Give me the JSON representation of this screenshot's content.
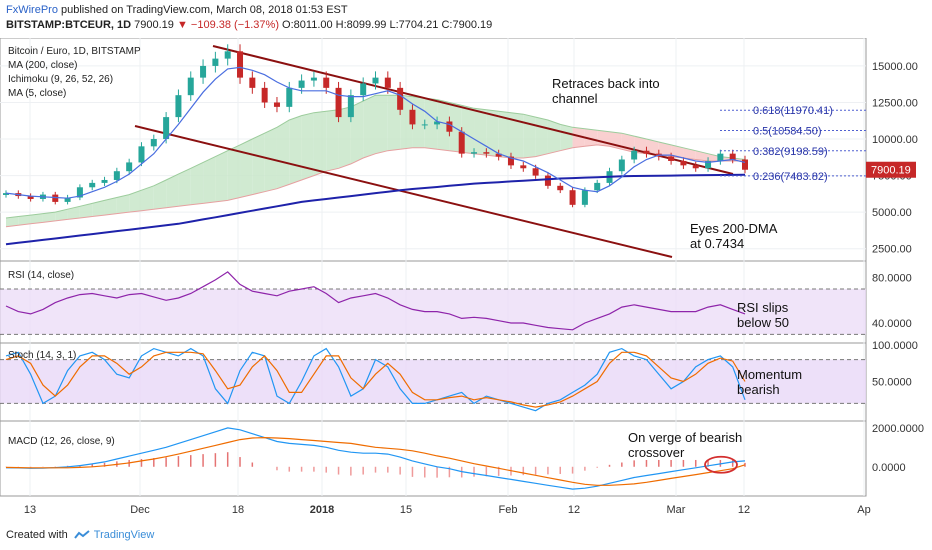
{
  "header": {
    "brand": "FxWirePro",
    "published": " published on TradingView.com, March 08, 2018 01:53 EST",
    "symbol": "BITSTAMP:BTCEUR, 1D",
    "last": "7900.19",
    "change": "▼ −109.38 (−1.37%)",
    "ohlc": "O:8011.00 H:8099.99 L:7704.21 C:7900.19"
  },
  "footer": {
    "created_with": "Created with",
    "tradingview": "TradingView"
  },
  "colors": {
    "up": "#26a69a",
    "down": "#c62828",
    "ma200": "#1e22aa",
    "ma5": "#4a6ee0",
    "cloud_bull": "#c8e6c9",
    "cloud_bear": "#f8c8c8",
    "channel": "#8b1010",
    "rsi": "#8e24aa",
    "stoch_k": "#2196f3",
    "stoch_d": "#ef6c00",
    "band": "#e9d8f7",
    "macd": "#2196f3",
    "signal": "#ef6c00",
    "hist": "#e53935"
  },
  "chart_data": [
    {
      "type": "line",
      "title": "Bitcoin / Euro, 1D, BITSTAMP",
      "indicators": [
        "MA (200, close)",
        "Ichimoku (9, 26, 52, 26)",
        "MA (5, close)"
      ],
      "y_ticks": [
        "15000.00",
        "12500.00",
        "10000.00",
        "7500.00",
        "5000.00",
        "2500.00"
      ],
      "ylim": [
        2000,
        16500
      ],
      "x_ticks": [
        "13",
        "Dec",
        "18",
        "2018",
        "15",
        "Feb",
        "12",
        "Mar",
        "12",
        "Ap"
      ],
      "price": [
        6300,
        6100,
        5900,
        6200,
        5700,
        6000,
        6700,
        7000,
        7200,
        7800,
        8400,
        9500,
        10000,
        11500,
        13000,
        14200,
        15000,
        15500,
        16000,
        14200,
        13500,
        12500,
        12200,
        13500,
        14000,
        14200,
        13500,
        11500,
        13000,
        13800,
        14200,
        13500,
        12000,
        11000,
        11000,
        11200,
        10500,
        9000,
        9100,
        9000,
        8800,
        8200,
        8000,
        7500,
        6800,
        6500,
        5500,
        6500,
        7000,
        7800,
        8600,
        9200,
        9000,
        8800,
        8500,
        8200,
        8000,
        8500,
        9000,
        8600,
        7900
      ],
      "ma5": [
        6300,
        6200,
        6100,
        6050,
        6000,
        5950,
        6100,
        6400,
        6700,
        7100,
        7600,
        8300,
        9000,
        10000,
        11000,
        12100,
        13200,
        14100,
        14800,
        14900,
        14700,
        14400,
        13900,
        13500,
        13300,
        13300,
        13300,
        13000,
        12900,
        12900,
        13100,
        13300,
        13000,
        12400,
        11900,
        11200,
        11000,
        10500,
        10000,
        9500,
        9000,
        8700,
        8500,
        8100,
        7700,
        7200,
        6700,
        6500,
        6400,
        6800,
        7400,
        8100,
        8600,
        8900,
        8900,
        8700,
        8500,
        8400,
        8500,
        8600,
        8400
      ],
      "ma200": [
        2800,
        2900,
        3000,
        3100,
        3200,
        3300,
        3400,
        3500,
        3600,
        3700,
        3800,
        3900,
        4000,
        4100,
        4200,
        4350,
        4500,
        4650,
        4800,
        4950,
        5100,
        5250,
        5400,
        5550,
        5700,
        5800,
        5900,
        6000,
        6100,
        6200,
        6300,
        6400,
        6500,
        6580,
        6650,
        6720,
        6800,
        6880,
        6950,
        7000,
        7050,
        7100,
        7150,
        7200,
        7250,
        7300,
        7330,
        7360,
        7390,
        7420,
        7450,
        7470,
        7480,
        7490,
        7500,
        7510,
        7520,
        7530,
        7540,
        7550,
        7560
      ],
      "cloud_top": [
        4600,
        4700,
        4800,
        4900,
        5000,
        5200,
        5400,
        5600,
        5800,
        6000,
        6200,
        6500,
        6800,
        7200,
        7600,
        8000,
        8400,
        8800,
        9200,
        9600,
        10000,
        10400,
        10800,
        11300,
        11600,
        11800,
        11900,
        12000,
        12200,
        12600,
        13000,
        13000,
        13000,
        12900,
        12800,
        12700,
        12500,
        12300,
        12100,
        12000,
        11900,
        11800,
        11700,
        11500,
        11300,
        11000,
        10800,
        10700,
        10600,
        10500,
        10400,
        10200,
        10000,
        9800,
        9600,
        9400,
        9200,
        9000,
        8800,
        8700,
        8600
      ],
      "cloud_bot": [
        4000,
        4100,
        4200,
        4300,
        4400,
        4500,
        4600,
        4700,
        4800,
        4900,
        5000,
        5100,
        5200,
        5300,
        5400,
        5500,
        5600,
        5700,
        5800,
        6000,
        6200,
        6400,
        6600,
        6900,
        7200,
        7500,
        7800,
        8000,
        8300,
        8700,
        9000,
        9200,
        9300,
        9400,
        9400,
        9300,
        9200,
        9100,
        9000,
        8900,
        8800,
        8700,
        8700,
        8800,
        9000,
        9200,
        9400,
        9500,
        9600,
        9500,
        9300,
        9100,
        9000,
        8900,
        8800,
        8700,
        8600,
        8500,
        8500,
        8500,
        8500
      ],
      "fib_levels": [
        {
          "label": "0.618(11970.41)",
          "value": 11970.41
        },
        {
          "label": "0.5(10584.50)",
          "value": 10584.5
        },
        {
          "label": "0.382(9198.59)",
          "value": 9198.59
        },
        {
          "label": "0.236(7483.82)",
          "value": 7483.82
        }
      ],
      "last_price_label": "7900.19",
      "annotations": [
        "Retraces back into channel",
        "Eyes 200-DMA at 0.7434"
      ]
    },
    {
      "type": "line",
      "title": "RSI (14, close)",
      "y_ticks": [
        "80.0000",
        "40.0000"
      ],
      "ylim": [
        25,
        92
      ],
      "band": [
        30,
        70
      ],
      "values": [
        55,
        50,
        48,
        52,
        58,
        62,
        65,
        66,
        64,
        62,
        65,
        66,
        63,
        60,
        62,
        66,
        72,
        78,
        85,
        74,
        68,
        66,
        64,
        68,
        70,
        72,
        66,
        58,
        62,
        64,
        66,
        62,
        56,
        52,
        50,
        50,
        48,
        44,
        45,
        44,
        42,
        40,
        40,
        38,
        36,
        35,
        34,
        40,
        44,
        48,
        54,
        56,
        54,
        52,
        50,
        50,
        50,
        54,
        56,
        52,
        48
      ],
      "annotations": [
        "RSI slips below 50"
      ]
    },
    {
      "type": "line",
      "title": "Stoch (14, 3, 1)",
      "y_ticks": [
        "100.0000",
        "50.0000"
      ],
      "ylim": [
        0,
        100
      ],
      "band": [
        20,
        80
      ],
      "k": [
        85,
        90,
        60,
        20,
        30,
        65,
        85,
        90,
        80,
        60,
        55,
        85,
        95,
        90,
        85,
        95,
        85,
        40,
        20,
        65,
        90,
        85,
        30,
        20,
        50,
        85,
        95,
        70,
        30,
        40,
        80,
        70,
        40,
        20,
        20,
        25,
        30,
        35,
        20,
        30,
        25,
        20,
        15,
        10,
        20,
        25,
        35,
        45,
        60,
        90,
        95,
        85,
        80,
        60,
        40,
        50,
        70,
        80,
        85,
        70,
        25
      ],
      "d": [
        80,
        85,
        75,
        45,
        30,
        45,
        70,
        85,
        85,
        75,
        60,
        70,
        85,
        90,
        90,
        90,
        88,
        65,
        40,
        45,
        70,
        85,
        65,
        35,
        35,
        60,
        85,
        85,
        55,
        40,
        60,
        75,
        60,
        35,
        25,
        25,
        28,
        30,
        25,
        28,
        25,
        22,
        18,
        15,
        18,
        22,
        30,
        40,
        50,
        75,
        90,
        90,
        85,
        70,
        55,
        50,
        60,
        75,
        82,
        78,
        50
      ],
      "annotations": [
        "Momentum bearish"
      ]
    },
    {
      "type": "line",
      "title": "MACD (12, 26, close, 9)",
      "y_ticks": [
        "2000.0000",
        "0.0000"
      ],
      "ylim": [
        -1400,
        2200
      ],
      "macd": [
        -50,
        -60,
        -80,
        -70,
        -40,
        0,
        60,
        150,
        250,
        400,
        550,
        700,
        850,
        1000,
        1200,
        1400,
        1600,
        1800,
        2000,
        1900,
        1700,
        1500,
        1300,
        1200,
        1150,
        1100,
        1000,
        850,
        750,
        700,
        700,
        650,
        500,
        300,
        150,
        0,
        -100,
        -250,
        -350,
        -450,
        -550,
        -650,
        -750,
        -850,
        -950,
        -1050,
        -1150,
        -1100,
        -1000,
        -850,
        -700,
        -550,
        -450,
        -350,
        -250,
        -150,
        -50,
        50,
        150,
        250,
        300
      ],
      "signal": [
        -30,
        -40,
        -50,
        -55,
        -55,
        -50,
        -30,
        0,
        50,
        120,
        200,
        300,
        400,
        520,
        650,
        800,
        950,
        1100,
        1250,
        1400,
        1480,
        1500,
        1480,
        1450,
        1400,
        1350,
        1300,
        1250,
        1200,
        1100,
        1000,
        950,
        900,
        820,
        700,
        560,
        440,
        300,
        160,
        40,
        -80,
        -200,
        -320,
        -440,
        -560,
        -680,
        -800,
        -900,
        -950,
        -950,
        -920,
        -880,
        -800,
        -700,
        -600,
        -500,
        -400,
        -300,
        -200,
        -100,
        100
      ],
      "annotations": [
        "On verge of bearish crossover"
      ]
    }
  ]
}
